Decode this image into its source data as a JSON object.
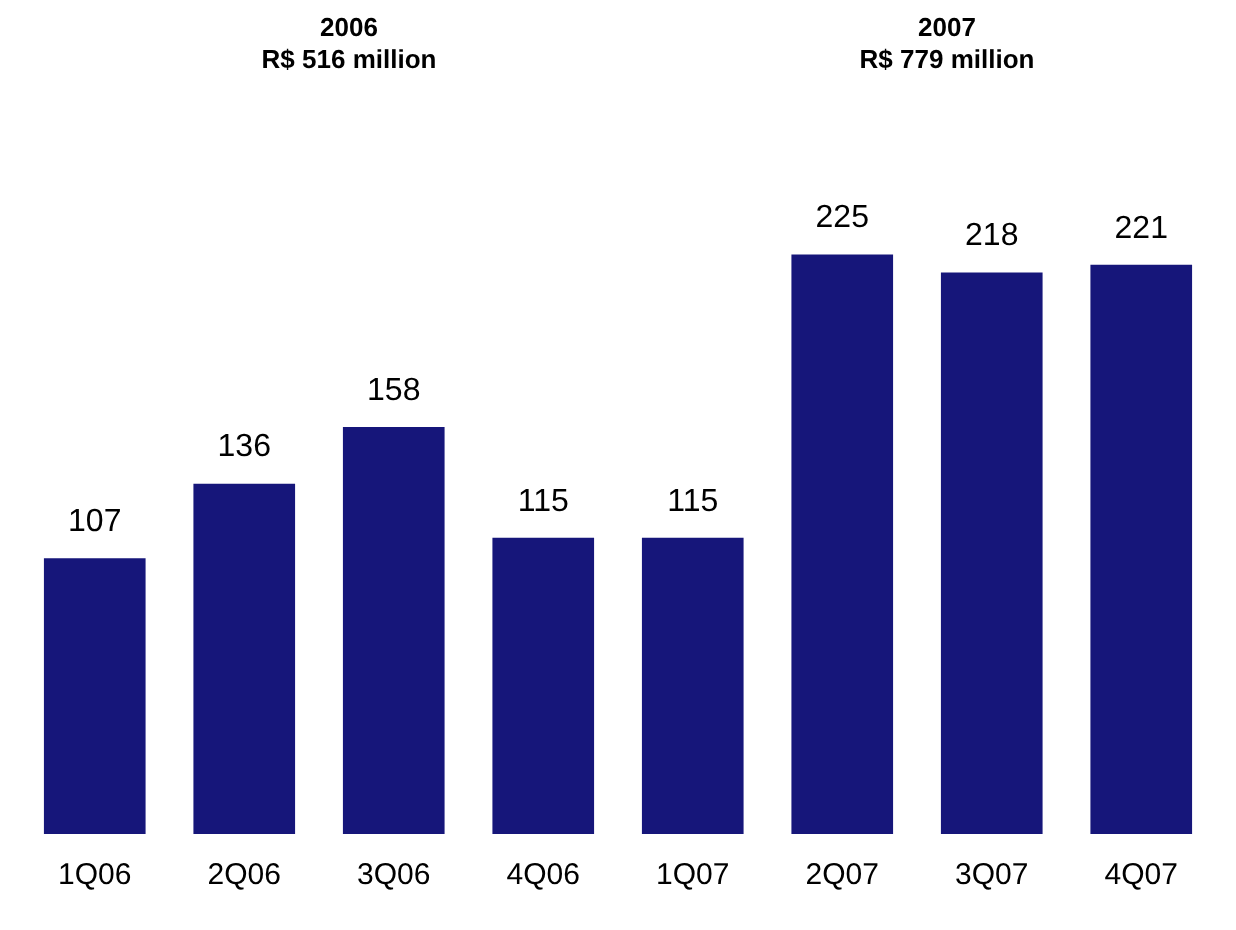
{
  "chart_data": {
    "type": "bar",
    "categories": [
      "1Q06",
      "2Q06",
      "3Q06",
      "4Q06",
      "1Q07",
      "2Q07",
      "3Q07",
      "4Q07"
    ],
    "values": [
      107,
      136,
      158,
      115,
      115,
      225,
      218,
      221
    ],
    "color": "#16167a",
    "data_labels": true,
    "grid": false,
    "legend": false,
    "annotations": [
      "2006\nR$ 516 million",
      "2007\nR$ 779 million"
    ]
  }
}
